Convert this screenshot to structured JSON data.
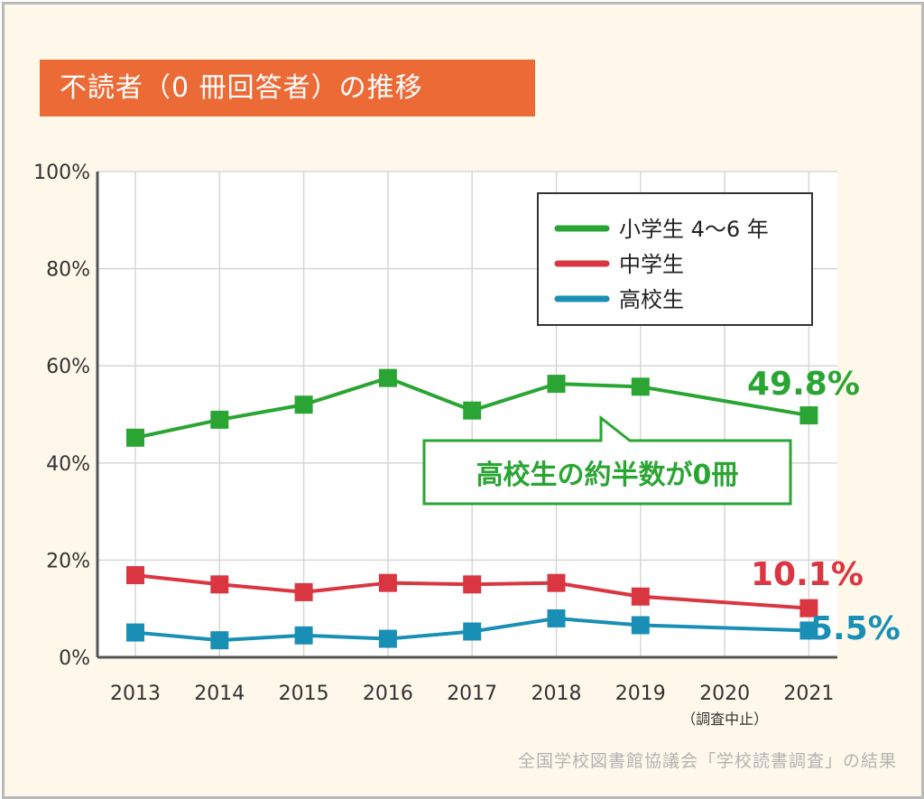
{
  "title": "不読者（0 冊回答者）の推移",
  "source": "全国学校図書館協議会「学校読書調査」の結果",
  "colors": {
    "background": "#fdf8ea",
    "title_bg": "#ec6a36",
    "elementary": "#2aa533",
    "junior_high": "#d93642",
    "high_school": "#1a8fb6",
    "grid": "#d6d6d6"
  },
  "chart_data": {
    "type": "line",
    "x": [
      "2013",
      "2014",
      "2015",
      "2016",
      "2017",
      "2018",
      "2019",
      "2020",
      "2021"
    ],
    "x_sublabels": {
      "2020": "（調査中止）"
    },
    "ylim": [
      0,
      100
    ],
    "y_ticks": [
      "0%",
      "20%",
      "40%",
      "60%",
      "80%",
      "100%"
    ],
    "grid": true,
    "legend_position": "top-right",
    "series": [
      {
        "name": "小学生 4〜6 年",
        "color": "#2aa533",
        "values": [
          45.2,
          48.9,
          52.0,
          57.5,
          50.8,
          56.3,
          55.7,
          null,
          49.8
        ]
      },
      {
        "name": "中学生",
        "color": "#d93642",
        "values": [
          16.9,
          15.0,
          13.4,
          15.3,
          15.0,
          15.3,
          12.5,
          null,
          10.1
        ]
      },
      {
        "name": "高校生",
        "color": "#1a8fb6",
        "values": [
          5.1,
          3.5,
          4.5,
          3.8,
          5.3,
          8.0,
          6.6,
          null,
          5.5
        ]
      }
    ],
    "end_labels": [
      {
        "text": "49.8%",
        "color": "#2aa533"
      },
      {
        "text": "10.1%",
        "color": "#d93642"
      },
      {
        "text": "5.5%",
        "color": "#1a8fb6"
      }
    ],
    "callout": {
      "text": "高校生の約半数が0冊",
      "color": "#2aa533"
    }
  }
}
